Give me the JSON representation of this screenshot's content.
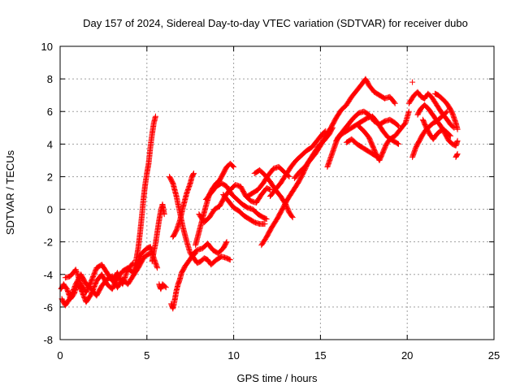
{
  "chart_data": {
    "type": "scatter",
    "title": "Day 157 of 2024, Sidereal Day-to-day VTEC variation (SDTVAR) for receiver dubo",
    "xlabel": "GPS time / hours",
    "ylabel": "SDTVAR / TECUs",
    "xlim": [
      0,
      25
    ],
    "ylim": [
      -8,
      10
    ],
    "xticks": [
      "0",
      "5",
      "10",
      "15",
      "20",
      "25"
    ],
    "yticks": [
      "-8",
      "-6",
      "-4",
      "-2",
      "0",
      "2",
      "4",
      "6",
      "8",
      "10"
    ],
    "grid": true,
    "marker": "plus",
    "color": "#ff0000",
    "tracks": [
      [
        [
          0.0,
          -5.0
        ],
        [
          0.2,
          -4.6
        ],
        [
          0.4,
          -4.9
        ],
        [
          0.6,
          -5.5
        ],
        [
          0.8,
          -5.2
        ],
        [
          1.0,
          -4.6
        ],
        [
          1.2,
          -4.9
        ],
        [
          1.5,
          -5.7
        ],
        [
          1.8,
          -5.2
        ],
        [
          2.1,
          -4.4
        ],
        [
          2.4,
          -4.0
        ],
        [
          2.7,
          -4.6
        ],
        [
          3.0,
          -4.9
        ],
        [
          3.3,
          -4.2
        ],
        [
          3.6,
          -3.8
        ],
        [
          3.9,
          -3.6
        ],
        [
          4.2,
          -3.9
        ],
        [
          4.5,
          -3.2
        ],
        [
          4.7,
          -2.7
        ],
        [
          5.0,
          -2.4
        ],
        [
          5.2,
          -2.3
        ],
        [
          5.4,
          -3.0
        ],
        [
          5.6,
          -3.6
        ]
      ],
      [
        [
          0.1,
          -5.5
        ],
        [
          0.3,
          -5.9
        ],
        [
          0.6,
          -5.4
        ],
        [
          0.9,
          -4.6
        ],
        [
          1.2,
          -4.0
        ],
        [
          1.5,
          -4.6
        ],
        [
          1.8,
          -4.9
        ],
        [
          2.1,
          -5.3
        ],
        [
          2.4,
          -4.7
        ],
        [
          2.7,
          -4.3
        ],
        [
          3.0,
          -4.1
        ],
        [
          3.3,
          -4.8
        ],
        [
          3.6,
          -4.3
        ],
        [
          3.9,
          -4.6
        ],
        [
          4.2,
          -4.1
        ],
        [
          4.5,
          -3.6
        ],
        [
          4.8,
          -3.0
        ],
        [
          5.0,
          -2.8
        ],
        [
          5.2,
          -2.7
        ]
      ],
      [
        [
          0.3,
          -4.2
        ],
        [
          0.6,
          -4.1
        ],
        [
          0.9,
          -3.7
        ],
        [
          1.2,
          -4.6
        ],
        [
          1.5,
          -5.1
        ],
        [
          1.8,
          -4.4
        ],
        [
          2.1,
          -3.6
        ],
        [
          2.4,
          -3.4
        ],
        [
          2.7,
          -3.9
        ],
        [
          3.0,
          -4.4
        ],
        [
          3.3,
          -3.9
        ],
        [
          3.6,
          -4.6
        ],
        [
          3.9,
          -3.7
        ],
        [
          4.2,
          -3.3
        ]
      ],
      [
        [
          4.3,
          -3.5
        ],
        [
          4.4,
          -3.0
        ],
        [
          4.5,
          -2.4
        ],
        [
          4.6,
          -1.5
        ],
        [
          4.7,
          -0.5
        ],
        [
          4.8,
          0.6
        ],
        [
          4.9,
          1.5
        ],
        [
          5.0,
          2.2
        ],
        [
          5.1,
          2.8
        ],
        [
          5.2,
          3.8
        ],
        [
          5.3,
          4.6
        ],
        [
          5.4,
          5.3
        ],
        [
          5.5,
          5.7
        ]
      ],
      [
        [
          5.3,
          -3.2
        ],
        [
          5.4,
          -2.6
        ],
        [
          5.5,
          -2.1
        ],
        [
          5.6,
          -1.4
        ],
        [
          5.7,
          -0.7
        ],
        [
          5.8,
          -0.1
        ],
        [
          5.9,
          0.3
        ],
        [
          6.0,
          -0.3
        ]
      ],
      [
        [
          5.7,
          -4.6
        ],
        [
          5.8,
          -4.9
        ],
        [
          5.9,
          -4.6
        ],
        [
          6.1,
          -4.8
        ]
      ],
      [
        [
          6.4,
          -5.8
        ],
        [
          6.5,
          -6.1
        ],
        [
          6.6,
          -5.6
        ],
        [
          6.7,
          -5.0
        ],
        [
          6.8,
          -4.6
        ],
        [
          6.9,
          -4.3
        ],
        [
          7.0,
          -3.9
        ],
        [
          7.2,
          -3.5
        ],
        [
          7.4,
          -3.2
        ],
        [
          7.6,
          -2.9
        ],
        [
          7.8,
          -2.7
        ]
      ],
      [
        [
          6.3,
          2.0
        ],
        [
          6.5,
          1.6
        ],
        [
          6.7,
          0.8
        ],
        [
          6.9,
          -0.2
        ],
        [
          7.1,
          -1.2
        ],
        [
          7.3,
          -2.0
        ],
        [
          7.5,
          -2.7
        ],
        [
          7.7,
          -3.0
        ],
        [
          7.9,
          -3.3
        ],
        [
          8.1,
          -3.2
        ],
        [
          8.3,
          -3.0
        ],
        [
          8.5,
          -3.1
        ],
        [
          8.7,
          -3.4
        ],
        [
          9.0,
          -3.1
        ],
        [
          9.3,
          -2.9
        ],
        [
          9.6,
          -3.0
        ],
        [
          9.8,
          -3.1
        ]
      ],
      [
        [
          6.5,
          -1.7
        ],
        [
          6.7,
          -1.3
        ],
        [
          6.9,
          -0.7
        ],
        [
          7.1,
          0.2
        ],
        [
          7.3,
          1.0
        ],
        [
          7.5,
          1.6
        ],
        [
          7.6,
          2.0
        ],
        [
          7.7,
          2.2
        ]
      ],
      [
        [
          7.8,
          -2.2
        ],
        [
          8.0,
          -1.4
        ],
        [
          8.2,
          -0.6
        ],
        [
          8.4,
          0.2
        ],
        [
          8.6,
          0.9
        ],
        [
          8.8,
          1.3
        ],
        [
          9.0,
          1.6
        ],
        [
          9.2,
          1.8
        ],
        [
          9.4,
          2.2
        ],
        [
          9.6,
          2.6
        ],
        [
          9.8,
          2.8
        ],
        [
          10.0,
          2.6
        ]
      ],
      [
        [
          7.6,
          -2.8
        ],
        [
          7.9,
          -2.5
        ],
        [
          8.2,
          -2.4
        ],
        [
          8.5,
          -2.1
        ],
        [
          8.8,
          -2.5
        ],
        [
          9.1,
          -2.7
        ],
        [
          9.4,
          -2.4
        ],
        [
          9.6,
          -2.0
        ]
      ],
      [
        [
          8.0,
          -0.3
        ],
        [
          8.3,
          -0.8
        ],
        [
          8.6,
          -0.5
        ],
        [
          8.9,
          0.0
        ],
        [
          9.2,
          0.2
        ],
        [
          9.5,
          0.8
        ],
        [
          9.8,
          1.2
        ],
        [
          10.1,
          1.5
        ],
        [
          10.4,
          1.4
        ],
        [
          10.7,
          0.8
        ],
        [
          11.0,
          0.5
        ],
        [
          11.3,
          0.4
        ],
        [
          11.6,
          0.9
        ],
        [
          11.9,
          1.3
        ],
        [
          12.1,
          1.2
        ]
      ],
      [
        [
          8.4,
          0.6
        ],
        [
          8.7,
          1.0
        ],
        [
          9.0,
          1.4
        ],
        [
          9.3,
          1.6
        ],
        [
          9.6,
          1.4
        ],
        [
          9.9,
          0.9
        ],
        [
          10.2,
          0.6
        ],
        [
          10.5,
          0.3
        ],
        [
          10.8,
          0.1
        ],
        [
          11.1,
          0.0
        ],
        [
          11.4,
          -0.3
        ],
        [
          11.7,
          -0.5
        ],
        [
          11.9,
          -0.6
        ]
      ],
      [
        [
          9.4,
          0.9
        ],
        [
          9.7,
          0.5
        ],
        [
          10.0,
          0.1
        ],
        [
          10.3,
          -0.1
        ],
        [
          10.6,
          -0.4
        ],
        [
          10.9,
          -0.6
        ],
        [
          11.2,
          -0.8
        ],
        [
          11.5,
          -0.9
        ],
        [
          11.8,
          -0.9
        ]
      ],
      [
        [
          10.8,
          0.8
        ],
        [
          11.1,
          1.0
        ],
        [
          11.4,
          1.2
        ],
        [
          11.7,
          1.6
        ],
        [
          12.0,
          2.1
        ],
        [
          12.3,
          2.5
        ],
        [
          12.6,
          2.6
        ],
        [
          12.9,
          2.3
        ],
        [
          13.2,
          2.0
        ]
      ],
      [
        [
          11.2,
          2.2
        ],
        [
          11.5,
          2.4
        ],
        [
          11.8,
          2.1
        ],
        [
          12.1,
          1.7
        ],
        [
          12.4,
          1.2
        ],
        [
          12.7,
          0.8
        ],
        [
          13.0,
          0.3
        ],
        [
          13.2,
          -0.2
        ],
        [
          13.4,
          -0.5
        ]
      ],
      [
        [
          11.6,
          -2.2
        ],
        [
          11.9,
          -1.7
        ],
        [
          12.2,
          -1.1
        ],
        [
          12.5,
          -0.6
        ],
        [
          12.8,
          0.0
        ],
        [
          13.1,
          0.6
        ],
        [
          13.4,
          1.1
        ],
        [
          13.7,
          1.6
        ],
        [
          14.0,
          2.2
        ],
        [
          14.3,
          2.9
        ],
        [
          14.6,
          3.4
        ],
        [
          14.9,
          3.9
        ],
        [
          15.2,
          4.2
        ],
        [
          15.5,
          4.6
        ],
        [
          15.7,
          5.0
        ]
      ],
      [
        [
          12.1,
          0.8
        ],
        [
          12.4,
          1.2
        ],
        [
          12.7,
          1.6
        ],
        [
          13.0,
          2.1
        ],
        [
          13.3,
          2.6
        ],
        [
          13.6,
          3.0
        ],
        [
          13.9,
          3.3
        ],
        [
          14.2,
          3.6
        ],
        [
          14.5,
          3.8
        ],
        [
          14.8,
          4.2
        ],
        [
          15.1,
          4.6
        ],
        [
          15.3,
          4.8
        ]
      ],
      [
        [
          13.5,
          1.9
        ],
        [
          13.8,
          2.3
        ],
        [
          14.1,
          2.6
        ],
        [
          14.4,
          3.0
        ],
        [
          14.7,
          3.4
        ],
        [
          15.0,
          3.9
        ],
        [
          15.3,
          4.5
        ],
        [
          15.6,
          5.0
        ],
        [
          15.9,
          5.6
        ],
        [
          16.2,
          6.1
        ],
        [
          16.5,
          6.4
        ],
        [
          16.8,
          6.9
        ],
        [
          17.1,
          7.3
        ],
        [
          17.4,
          7.7
        ],
        [
          17.6,
          8.0
        ],
        [
          17.8,
          7.6
        ],
        [
          18.1,
          7.2
        ],
        [
          18.4,
          7.0
        ],
        [
          18.7,
          6.8
        ],
        [
          19.0,
          6.9
        ],
        [
          19.3,
          6.5
        ]
      ],
      [
        [
          15.4,
          2.6
        ],
        [
          15.6,
          3.2
        ],
        [
          15.8,
          3.8
        ],
        [
          16.0,
          4.4
        ],
        [
          16.3,
          4.8
        ],
        [
          16.6,
          5.2
        ],
        [
          16.9,
          5.6
        ],
        [
          17.2,
          5.9
        ],
        [
          17.5,
          6.0
        ],
        [
          17.8,
          5.8
        ],
        [
          18.1,
          5.4
        ],
        [
          18.4,
          5.2
        ],
        [
          18.7,
          5.4
        ],
        [
          19.0,
          5.5
        ],
        [
          19.3,
          5.3
        ],
        [
          19.5,
          5.1
        ]
      ],
      [
        [
          15.9,
          4.2
        ],
        [
          16.2,
          4.6
        ],
        [
          16.5,
          4.8
        ],
        [
          16.8,
          5.0
        ],
        [
          17.1,
          5.2
        ],
        [
          17.4,
          5.4
        ],
        [
          17.7,
          5.6
        ],
        [
          18.0,
          5.7
        ],
        [
          18.3,
          5.3
        ],
        [
          18.6,
          4.8
        ],
        [
          18.9,
          4.4
        ],
        [
          19.2,
          4.2
        ],
        [
          19.5,
          4.0
        ]
      ],
      [
        [
          16.5,
          4.1
        ],
        [
          16.8,
          4.3
        ],
        [
          17.1,
          4.0
        ],
        [
          17.4,
          3.8
        ],
        [
          17.7,
          3.6
        ],
        [
          18.0,
          3.4
        ],
        [
          18.3,
          3.2
        ]
      ],
      [
        [
          17.2,
          5.1
        ],
        [
          17.5,
          4.8
        ],
        [
          17.8,
          4.4
        ],
        [
          18.0,
          3.9
        ],
        [
          18.2,
          3.4
        ],
        [
          18.4,
          3.0
        ],
        [
          18.6,
          3.5
        ],
        [
          18.8,
          4.0
        ],
        [
          19.0,
          4.3
        ],
        [
          19.3,
          4.5
        ],
        [
          19.6,
          4.9
        ],
        [
          19.9,
          5.3
        ],
        [
          20.1,
          6.0
        ]
      ],
      [
        [
          20.1,
          6.5
        ],
        [
          20.4,
          7.0
        ],
        [
          20.6,
          7.2
        ],
        [
          20.8,
          6.9
        ],
        [
          21.0,
          6.8
        ],
        [
          21.2,
          7.1
        ],
        [
          21.4,
          6.9
        ],
        [
          21.7,
          6.4
        ],
        [
          22.0,
          5.9
        ],
        [
          22.3,
          5.5
        ],
        [
          22.5,
          5.2
        ],
        [
          22.7,
          5.0
        ]
      ],
      [
        [
          20.3,
          3.2
        ],
        [
          20.5,
          3.8
        ],
        [
          20.7,
          4.2
        ],
        [
          20.9,
          4.6
        ],
        [
          21.1,
          4.9
        ],
        [
          21.3,
          5.1
        ],
        [
          21.5,
          5.3
        ],
        [
          21.7,
          5.4
        ],
        [
          21.9,
          5.6
        ],
        [
          22.1,
          5.8
        ],
        [
          22.3,
          6.0
        ]
      ],
      [
        [
          20.6,
          5.8
        ],
        [
          20.8,
          6.2
        ],
        [
          21.0,
          6.4
        ],
        [
          21.2,
          6.2
        ],
        [
          21.4,
          5.9
        ],
        [
          21.6,
          5.6
        ],
        [
          21.8,
          5.3
        ],
        [
          22.0,
          5.0
        ],
        [
          22.2,
          4.6
        ],
        [
          22.4,
          4.2
        ],
        [
          22.6,
          4.0
        ],
        [
          22.8,
          3.9
        ],
        [
          22.9,
          4.2
        ]
      ],
      [
        [
          21.6,
          7.1
        ],
        [
          21.8,
          7.0
        ],
        [
          22.0,
          6.8
        ],
        [
          22.2,
          6.6
        ],
        [
          22.4,
          6.3
        ],
        [
          22.6,
          5.9
        ],
        [
          22.8,
          5.3
        ],
        [
          22.9,
          4.9
        ]
      ],
      [
        [
          20.9,
          5.5
        ],
        [
          21.1,
          5.0
        ],
        [
          21.3,
          4.6
        ],
        [
          21.5,
          4.3
        ],
        [
          21.7,
          4.6
        ],
        [
          21.9,
          4.8
        ],
        [
          22.1,
          4.9
        ],
        [
          22.3,
          4.7
        ],
        [
          22.5,
          4.5
        ]
      ],
      [
        [
          22.8,
          3.2
        ],
        [
          22.9,
          3.4
        ]
      ],
      [
        [
          20.3,
          7.8
        ]
      ]
    ]
  }
}
